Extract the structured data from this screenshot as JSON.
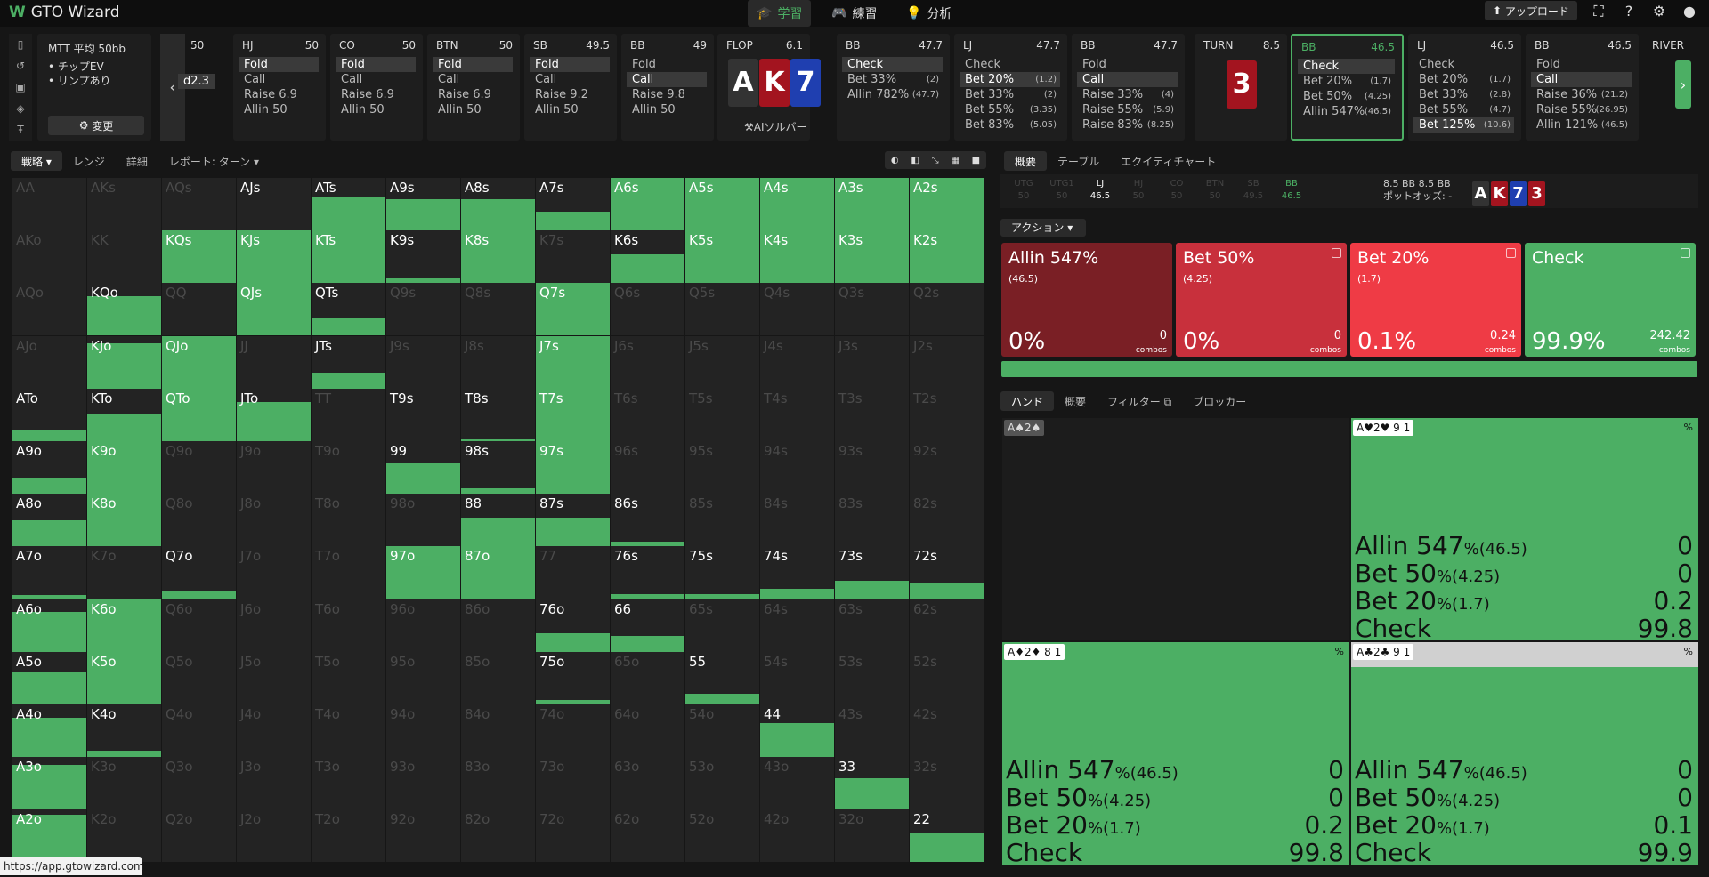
{
  "app": {
    "title": "GTO Wizard",
    "url": "https://app.gtowizard.com"
  },
  "topnav": [
    {
      "label": "学習",
      "icon": "graduation-cap-icon"
    },
    {
      "label": "練習",
      "icon": "gamepad-icon"
    },
    {
      "label": "分析",
      "icon": "lightbulb-icon"
    }
  ],
  "upload_label": "アップロード",
  "game": {
    "title": "MTT 平均 50bb",
    "opt1": "• チップEV",
    "opt2": "• リンプあり",
    "change_label": "変更"
  },
  "ghost": {
    "size": "d2.3",
    "chips": "50"
  },
  "players": [
    {
      "pos": "HJ",
      "stack": "50",
      "actions": [
        "Fold",
        "Call",
        "Raise 6.9",
        "Allin 50"
      ],
      "sel": 0
    },
    {
      "pos": "CO",
      "stack": "50",
      "actions": [
        "Fold",
        "Call",
        "Raise 6.9",
        "Allin 50"
      ],
      "sel": 0
    },
    {
      "pos": "BTN",
      "stack": "50",
      "actions": [
        "Fold",
        "Call",
        "Raise 6.9",
        "Allin 50"
      ],
      "sel": 0
    },
    {
      "pos": "SB",
      "stack": "49.5",
      "actions": [
        "Fold",
        "Call",
        "Raise 9.2",
        "Allin 50"
      ],
      "sel": 0
    },
    {
      "pos": "BB",
      "stack": "49",
      "actions": [
        "Fold",
        "Call",
        "Raise 9.8",
        "Allin 50"
      ],
      "sel": 1
    }
  ],
  "flop": {
    "label": "FLOP",
    "pot": "6.1",
    "cards": [
      "A",
      "K",
      "7"
    ],
    "card_colors": [
      "#333333",
      "#a3141f",
      "#1f3fb0"
    ],
    "ai_solver": "AIソルバー"
  },
  "flop_actions": [
    {
      "pos": "BB",
      "stack": "47.7",
      "actions": [
        [
          "Check",
          ""
        ],
        [
          "Bet 33%",
          "(2)"
        ],
        [
          "Allin 782%",
          "(47.7)"
        ]
      ],
      "sel": 0
    },
    {
      "pos": "LJ",
      "stack": "47.7",
      "actions": [
        [
          "Check",
          ""
        ],
        [
          "Bet 20%",
          "(1.2)"
        ],
        [
          "Bet 33%",
          "(2)"
        ],
        [
          "Bet 55%",
          "(3.35)"
        ],
        [
          "Bet 83%",
          "(5.05)"
        ]
      ],
      "sel": 1
    },
    {
      "pos": "BB",
      "stack": "47.7",
      "actions": [
        [
          "Fold",
          ""
        ],
        [
          "Call",
          ""
        ],
        [
          "Raise 33%",
          "(4)"
        ],
        [
          "Raise 55%",
          "(5.9)"
        ],
        [
          "Raise 83%",
          "(8.25)"
        ]
      ],
      "sel": 1
    }
  ],
  "turn": {
    "label": "TURN",
    "pot": "8.5",
    "card": "3",
    "card_color": "#a3141f"
  },
  "turn_actions": [
    {
      "pos": "BB",
      "stack": "46.5",
      "actions": [
        [
          "Check",
          ""
        ],
        [
          "Bet 20%",
          "(1.7)"
        ],
        [
          "Bet 50%",
          "(4.25)"
        ],
        [
          "Allin 547%",
          "(46.5)"
        ]
      ],
      "sel": 0,
      "active": true
    },
    {
      "pos": "LJ",
      "stack": "46.5",
      "actions": [
        [
          "Check",
          ""
        ],
        [
          "Bet 20%",
          "(1.7)"
        ],
        [
          "Bet 33%",
          "(2.8)"
        ],
        [
          "Bet 55%",
          "(4.7)"
        ],
        [
          "Bet 125%",
          "(10.6)"
        ]
      ],
      "sel": 4
    },
    {
      "pos": "BB",
      "stack": "46.5",
      "actions": [
        [
          "Fold",
          ""
        ],
        [
          "Call",
          ""
        ],
        [
          "Raise 36%",
          "(21.2)"
        ],
        [
          "Raise 55%",
          "(26.95)"
        ],
        [
          "Allin 121%",
          "(46.5)"
        ]
      ],
      "sel": 1
    }
  ],
  "river_label": "RIVER",
  "left_tabs": [
    "戦略",
    "レンジ",
    "詳細",
    "レポート: ターン"
  ],
  "right_tabs": [
    "概要",
    "テーブル",
    "エクイティチャート"
  ],
  "positions": [
    {
      "name": "UTG",
      "stack": "50"
    },
    {
      "name": "UTG1",
      "stack": "50"
    },
    {
      "name": "LJ",
      "stack": "46.5"
    },
    {
      "name": "HJ",
      "stack": "50"
    },
    {
      "name": "CO",
      "stack": "50"
    },
    {
      "name": "BTN",
      "stack": "50"
    },
    {
      "name": "SB",
      "stack": "49.5"
    },
    {
      "name": "BB",
      "stack": "46.5"
    }
  ],
  "pot": {
    "line1": "8.5 BB  8.5 BB",
    "line2": "ポットオッズ: -"
  },
  "board": [
    {
      "r": "A",
      "c": "#333333"
    },
    {
      "r": "K",
      "c": "#a3141f"
    },
    {
      "r": "7",
      "c": "#1f3fb0"
    },
    {
      "r": "3",
      "c": "#a3141f"
    }
  ],
  "action_label": "アクション",
  "actions": [
    {
      "name": "Allin 547%",
      "size": "(46.5)",
      "pct": "0%",
      "combos": "0",
      "color": "#7a1f25"
    },
    {
      "name": "Bet 50%",
      "size": "(4.25)",
      "pct": "0%",
      "combos": "0",
      "color": "#c8303c"
    },
    {
      "name": "Bet 20%",
      "size": "(1.7)",
      "pct": "0.1%",
      "combos": "0.24",
      "color": "#ef3b45"
    },
    {
      "name": "Check",
      "size": "",
      "pct": "99.9%",
      "combos": "242.42",
      "color": "#4caf64"
    }
  ],
  "combos_label": "combos",
  "hand_tabs": [
    "ハンド",
    "概要",
    "フィルター",
    "ブロッカー"
  ],
  "hand_boxes": [
    {
      "label": "A♠2♠",
      "badges": "",
      "pct": "",
      "stats": []
    },
    {
      "label": "A♥2♥",
      "badges": "9  1",
      "pct": "%",
      "stats": [
        [
          "Allin 547",
          "%(46.5)",
          "0"
        ],
        [
          "Bet 50",
          "%(4.25)",
          "0"
        ],
        [
          "Bet 20",
          "%(1.7)",
          "0.2"
        ],
        [
          "Check",
          "",
          "99.8"
        ]
      ]
    },
    {
      "label": "A♦2♦",
      "badges": "8  1",
      "pct": "%",
      "stats": [
        [
          "Allin 547",
          "%(46.5)",
          "0"
        ],
        [
          "Bet 50",
          "%(4.25)",
          "0"
        ],
        [
          "Bet 20",
          "%(1.7)",
          "0.2"
        ],
        [
          "Check",
          "",
          "99.8"
        ]
      ]
    },
    {
      "label": "A♣2♣",
      "badges": "9  1",
      "pct": "%",
      "stats": [
        [
          "Allin 547",
          "%(46.5)",
          "0"
        ],
        [
          "Bet 50",
          "%(4.25)",
          "0"
        ],
        [
          "Bet 20",
          "%(1.7)",
          "0.1"
        ],
        [
          "Check",
          "",
          "99.9"
        ]
      ]
    }
  ],
  "matrix": {
    "ranks": [
      "A",
      "K",
      "Q",
      "J",
      "T",
      "9",
      "8",
      "7",
      "6",
      "5",
      "4",
      "3",
      "2"
    ],
    "freq": [
      [
        0,
        0,
        0,
        0,
        0.65,
        0.6,
        0.6,
        0.35,
        1,
        1,
        1,
        1,
        1
      ],
      [
        0,
        0,
        1,
        1,
        1,
        0.1,
        1,
        0,
        0.55,
        1,
        1,
        1,
        1
      ],
      [
        0,
        0.75,
        0,
        1,
        0.35,
        0,
        0,
        1,
        0,
        0,
        0,
        0,
        0
      ],
      [
        0,
        0.85,
        1,
        0,
        0.3,
        0,
        0,
        1,
        0,
        0,
        0,
        0,
        0
      ],
      [
        0.2,
        0.5,
        1,
        0.75,
        0,
        0,
        0.03,
        1,
        0,
        0,
        0,
        0,
        0
      ],
      [
        0.3,
        1,
        0,
        0,
        0,
        0.6,
        0.1,
        1,
        0,
        0,
        0,
        0,
        0
      ],
      [
        0.5,
        1,
        0,
        0,
        0,
        0,
        0.55,
        0.55,
        0.08,
        0,
        0,
        0,
        0
      ],
      [
        0.08,
        0,
        0.15,
        0,
        0,
        1,
        1,
        0,
        0.1,
        0.1,
        0.2,
        0.35,
        0.3
      ],
      [
        0.75,
        1,
        0,
        0,
        0,
        0,
        0,
        0.35,
        0.3,
        0,
        0,
        0,
        0
      ],
      [
        0.6,
        1,
        0,
        0,
        0,
        0,
        0,
        0.08,
        0,
        0.2,
        0,
        0,
        0
      ],
      [
        0.75,
        0.12,
        0,
        0,
        0,
        0,
        0,
        0,
        0,
        0,
        0.65,
        0,
        0
      ],
      [
        0.85,
        0,
        0,
        0,
        0,
        0,
        0,
        0,
        0,
        0,
        0,
        0.6,
        0
      ],
      [
        0.9,
        0,
        0,
        0,
        0,
        0,
        0,
        0,
        0,
        0,
        0,
        0,
        0.55
      ]
    ],
    "dim": [
      [
        1,
        1,
        1,
        0,
        0,
        0,
        0,
        0,
        0,
        0,
        0,
        0,
        0
      ],
      [
        1,
        1,
        0,
        0,
        0,
        0,
        0,
        1,
        0,
        0,
        0,
        0,
        0
      ],
      [
        1,
        0,
        1,
        0,
        0,
        1,
        1,
        0,
        1,
        1,
        1,
        1,
        1
      ],
      [
        1,
        0,
        0,
        1,
        0,
        1,
        1,
        0,
        1,
        1,
        1,
        1,
        1
      ],
      [
        0,
        0,
        0,
        0,
        1,
        0,
        0,
        0,
        1,
        1,
        1,
        1,
        1
      ],
      [
        0,
        0,
        1,
        1,
        1,
        0,
        0,
        0,
        1,
        1,
        1,
        1,
        1
      ],
      [
        0,
        0,
        1,
        1,
        1,
        1,
        0,
        0,
        0,
        1,
        1,
        1,
        1
      ],
      [
        0,
        1,
        0,
        1,
        1,
        0,
        0,
        1,
        0,
        0,
        0,
        0,
        0
      ],
      [
        0,
        0,
        1,
        1,
        1,
        1,
        1,
        0,
        0,
        1,
        1,
        1,
        1
      ],
      [
        0,
        0,
        1,
        1,
        1,
        1,
        1,
        0,
        1,
        0,
        1,
        1,
        1
      ],
      [
        0,
        0,
        1,
        1,
        1,
        1,
        1,
        1,
        1,
        1,
        0,
        1,
        1
      ],
      [
        0,
        1,
        1,
        1,
        1,
        1,
        1,
        1,
        1,
        1,
        1,
        0,
        1
      ],
      [
        0,
        1,
        1,
        1,
        1,
        1,
        1,
        1,
        1,
        1,
        1,
        1,
        0
      ]
    ]
  }
}
